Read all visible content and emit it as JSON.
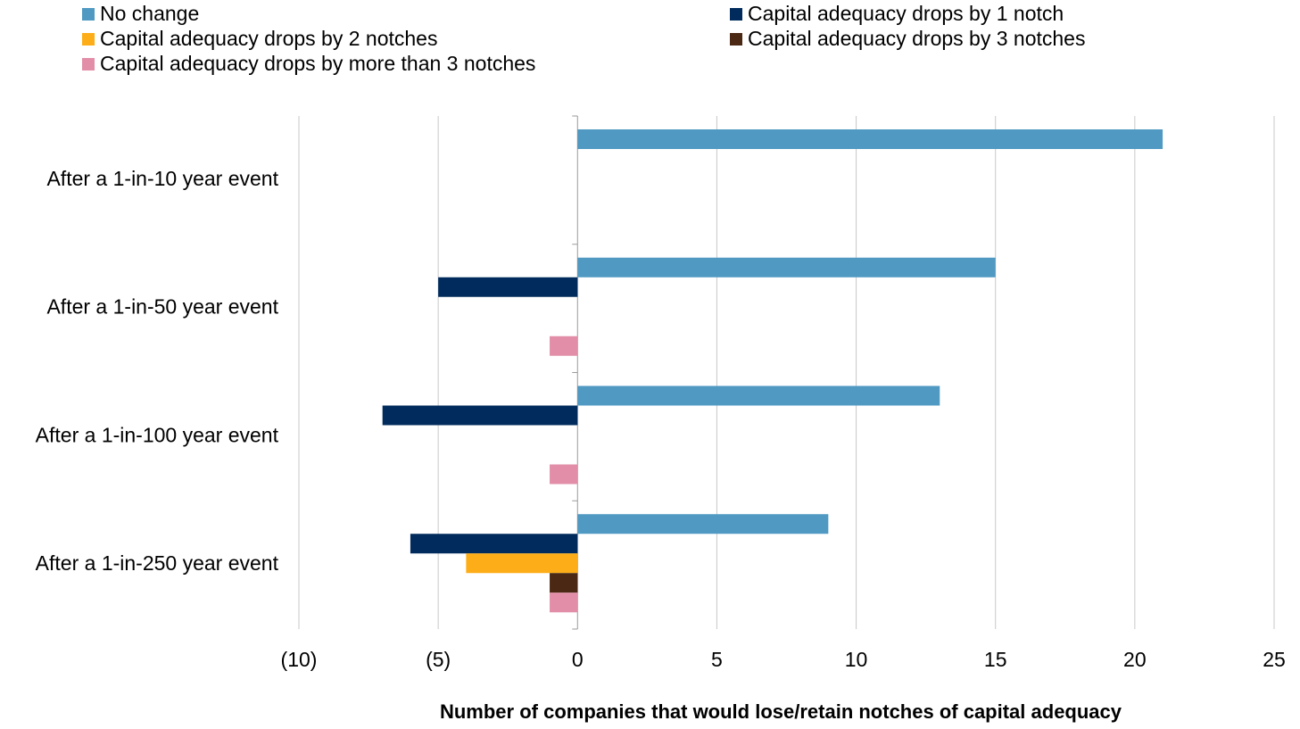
{
  "chart_data": {
    "type": "bar",
    "orientation": "horizontal",
    "categories": [
      "After a 1-in-10 year event",
      "After a 1-in-50 year event",
      "After a 1-in-100 year event",
      "After a 1-in-250 year event"
    ],
    "series": [
      {
        "name": "No change",
        "color": "#4f99c2",
        "values": [
          21,
          15,
          13,
          9
        ]
      },
      {
        "name": "Capital adequacy drops by 1 notch",
        "color": "#002b5c",
        "values": [
          0,
          -5,
          -7,
          -6
        ]
      },
      {
        "name": "Capital adequacy drops by 2 notches",
        "color": "#fdad17",
        "values": [
          0,
          0,
          0,
          -4
        ]
      },
      {
        "name": "Capital adequacy drops by 3 notches",
        "color": "#4a2814",
        "values": [
          0,
          0,
          0,
          -1
        ]
      },
      {
        "name": "Capital adequacy drops by more than 3 notches",
        "color": "#e28ea8",
        "values": [
          0,
          -1,
          -1,
          -1
        ]
      }
    ],
    "xlim": [
      -10,
      25
    ],
    "xticks": [
      -10,
      -5,
      0,
      5,
      10,
      15,
      20,
      25
    ],
    "xtick_labels": [
      "(10)",
      "(5)",
      "0",
      "5",
      "10",
      "15",
      "20",
      "25"
    ],
    "xlabel": "Number of companies that would lose/retain notches of capital adequacy",
    "ylabel": "",
    "title": "",
    "grid": "vertical",
    "legend": "top"
  }
}
